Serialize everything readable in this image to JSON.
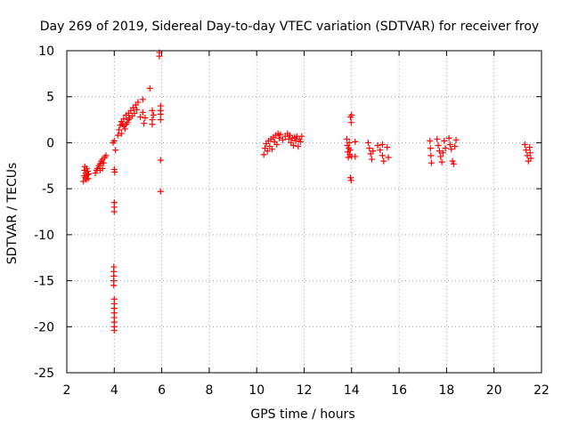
{
  "chart_data": {
    "type": "scatter",
    "title": "Day 269 of 2019, Sidereal Day-to-day VTEC variation (SDTVAR) for receiver froy",
    "xlabel": "GPS time / hours",
    "ylabel": "SDTVAR / TECUs",
    "xlim": [
      2,
      22
    ],
    "ylim": [
      -25,
      10
    ],
    "xticks": [
      2,
      4,
      6,
      8,
      10,
      12,
      14,
      16,
      18,
      20,
      22
    ],
    "yticks": [
      10,
      5,
      0,
      -5,
      -10,
      -15,
      -20,
      -25
    ],
    "grid": true,
    "marker": "plus",
    "color": "#ff0000",
    "series": [
      {
        "name": "SDTVAR",
        "points": [
          [
            2.7,
            -4.2
          ],
          [
            2.72,
            -3.6
          ],
          [
            2.74,
            -3.0
          ],
          [
            2.76,
            -2.6
          ],
          [
            2.78,
            -3.8
          ],
          [
            2.8,
            -3.3
          ],
          [
            2.82,
            -4.0
          ],
          [
            2.84,
            -2.8
          ],
          [
            2.86,
            -3.5
          ],
          [
            2.88,
            -3.1
          ],
          [
            2.9,
            -3.9
          ],
          [
            2.92,
            -3.4
          ],
          [
            3.2,
            -3.3
          ],
          [
            3.25,
            -3.0
          ],
          [
            3.3,
            -2.8
          ],
          [
            3.35,
            -2.5
          ],
          [
            3.4,
            -2.3
          ],
          [
            3.45,
            -2.0
          ],
          [
            3.5,
            -1.8
          ],
          [
            3.55,
            -2.2
          ],
          [
            3.6,
            -1.6
          ],
          [
            3.65,
            -1.4
          ],
          [
            3.5,
            -2.8
          ],
          [
            3.4,
            -3.0
          ],
          [
            3.95,
            0.0
          ],
          [
            4.0,
            0.2
          ],
          [
            4.05,
            -0.8
          ],
          [
            4.0,
            -2.9
          ],
          [
            4.02,
            -3.2
          ],
          [
            4.0,
            -6.5
          ],
          [
            4.0,
            -7.0
          ],
          [
            4.0,
            -7.5
          ],
          [
            3.98,
            -13.5
          ],
          [
            3.98,
            -14.0
          ],
          [
            3.98,
            -14.5
          ],
          [
            3.98,
            -15.0
          ],
          [
            3.98,
            -15.5
          ],
          [
            4.0,
            -17.0
          ],
          [
            4.0,
            -17.5
          ],
          [
            4.0,
            -18.0
          ],
          [
            4.0,
            -18.5
          ],
          [
            4.0,
            -19.0
          ],
          [
            4.0,
            -19.5
          ],
          [
            4.0,
            -20.0
          ],
          [
            4.0,
            -20.4
          ],
          [
            4.15,
            0.8
          ],
          [
            4.2,
            1.4
          ],
          [
            4.25,
            1.9
          ],
          [
            4.3,
            2.3
          ],
          [
            4.35,
            2.0
          ],
          [
            4.4,
            2.6
          ],
          [
            4.45,
            1.5
          ],
          [
            4.5,
            3.0
          ],
          [
            4.55,
            2.2
          ],
          [
            4.6,
            3.2
          ],
          [
            4.65,
            2.7
          ],
          [
            4.7,
            3.5
          ],
          [
            4.75,
            2.9
          ],
          [
            4.8,
            3.8
          ],
          [
            4.85,
            3.2
          ],
          [
            4.9,
            4.1
          ],
          [
            4.95,
            3.6
          ],
          [
            5.0,
            4.4
          ],
          [
            4.3,
            1.0
          ],
          [
            4.4,
            1.8
          ],
          [
            4.5,
            2.0
          ],
          [
            4.6,
            2.5
          ],
          [
            5.1,
            2.8
          ],
          [
            5.2,
            4.7
          ],
          [
            5.2,
            3.3
          ],
          [
            5.25,
            2.1
          ],
          [
            5.3,
            2.7
          ],
          [
            5.5,
            5.9
          ],
          [
            5.6,
            2.5
          ],
          [
            5.6,
            3.5
          ],
          [
            5.6,
            2.0
          ],
          [
            5.65,
            3.0
          ],
          [
            5.9,
            9.8
          ],
          [
            5.9,
            9.4
          ],
          [
            5.95,
            4.0
          ],
          [
            5.95,
            3.5
          ],
          [
            5.95,
            2.5
          ],
          [
            5.95,
            3.1
          ],
          [
            5.95,
            -1.9
          ],
          [
            5.95,
            -5.3
          ],
          [
            10.3,
            -1.3
          ],
          [
            10.35,
            -0.6
          ],
          [
            10.4,
            -0.1
          ],
          [
            10.45,
            -0.9
          ],
          [
            10.5,
            0.2
          ],
          [
            10.55,
            -0.4
          ],
          [
            10.6,
            0.4
          ],
          [
            10.65,
            -0.7
          ],
          [
            10.7,
            0.6
          ],
          [
            10.75,
            0.1
          ],
          [
            10.8,
            0.8
          ],
          [
            10.85,
            -0.2
          ],
          [
            10.9,
            1.0
          ],
          [
            10.95,
            0.5
          ],
          [
            11.0,
            0.9
          ],
          [
            11.1,
            0.3
          ],
          [
            11.2,
            0.7
          ],
          [
            11.3,
            1.0
          ],
          [
            11.35,
            0.4
          ],
          [
            11.4,
            0.8
          ],
          [
            11.45,
            0.0
          ],
          [
            11.5,
            0.5
          ],
          [
            11.55,
            -0.3
          ],
          [
            11.6,
            0.6
          ],
          [
            11.65,
            0.2
          ],
          [
            11.7,
            0.7
          ],
          [
            11.75,
            -0.4
          ],
          [
            11.8,
            0.4
          ],
          [
            11.85,
            0.1
          ],
          [
            11.9,
            0.7
          ],
          [
            13.8,
            0.4
          ],
          [
            13.82,
            -0.3
          ],
          [
            13.84,
            -1.0
          ],
          [
            13.86,
            -1.6
          ],
          [
            13.88,
            -0.6
          ],
          [
            13.9,
            0.0
          ],
          [
            13.92,
            -1.3
          ],
          [
            13.94,
            -0.8
          ],
          [
            13.95,
            2.8
          ],
          [
            13.98,
            2.2
          ],
          [
            14.0,
            3.0
          ],
          [
            13.95,
            -3.8
          ],
          [
            13.98,
            -4.1
          ],
          [
            14.0,
            -1.5
          ],
          [
            14.15,
            0.1
          ],
          [
            14.15,
            -1.5
          ],
          [
            14.7,
            0.0
          ],
          [
            14.75,
            -0.6
          ],
          [
            14.8,
            -1.2
          ],
          [
            14.85,
            -1.8
          ],
          [
            14.9,
            -0.9
          ],
          [
            15.1,
            -0.3
          ],
          [
            15.2,
            -0.8
          ],
          [
            15.3,
            -1.4
          ],
          [
            15.35,
            -2.0
          ],
          [
            15.3,
            -0.2
          ],
          [
            15.5,
            -0.5
          ],
          [
            15.55,
            -1.6
          ],
          [
            17.3,
            0.2
          ],
          [
            17.32,
            -0.6
          ],
          [
            17.34,
            -1.4
          ],
          [
            17.36,
            -2.2
          ],
          [
            17.6,
            0.4
          ],
          [
            17.65,
            -0.3
          ],
          [
            17.7,
            -0.9
          ],
          [
            17.75,
            -1.5
          ],
          [
            17.8,
            -2.1
          ],
          [
            17.85,
            -1.1
          ],
          [
            17.9,
            0.2
          ],
          [
            17.95,
            -0.6
          ],
          [
            18.1,
            0.5
          ],
          [
            18.15,
            -0.2
          ],
          [
            18.2,
            -0.7
          ],
          [
            18.25,
            -2.0
          ],
          [
            18.3,
            -2.3
          ],
          [
            18.35,
            -0.4
          ],
          [
            18.4,
            0.3
          ],
          [
            21.3,
            -0.2
          ],
          [
            21.35,
            -0.8
          ],
          [
            21.4,
            -1.4
          ],
          [
            21.45,
            -2.0
          ],
          [
            21.5,
            -0.5
          ],
          [
            21.52,
            -1.1
          ],
          [
            21.55,
            -1.7
          ]
        ]
      }
    ]
  }
}
